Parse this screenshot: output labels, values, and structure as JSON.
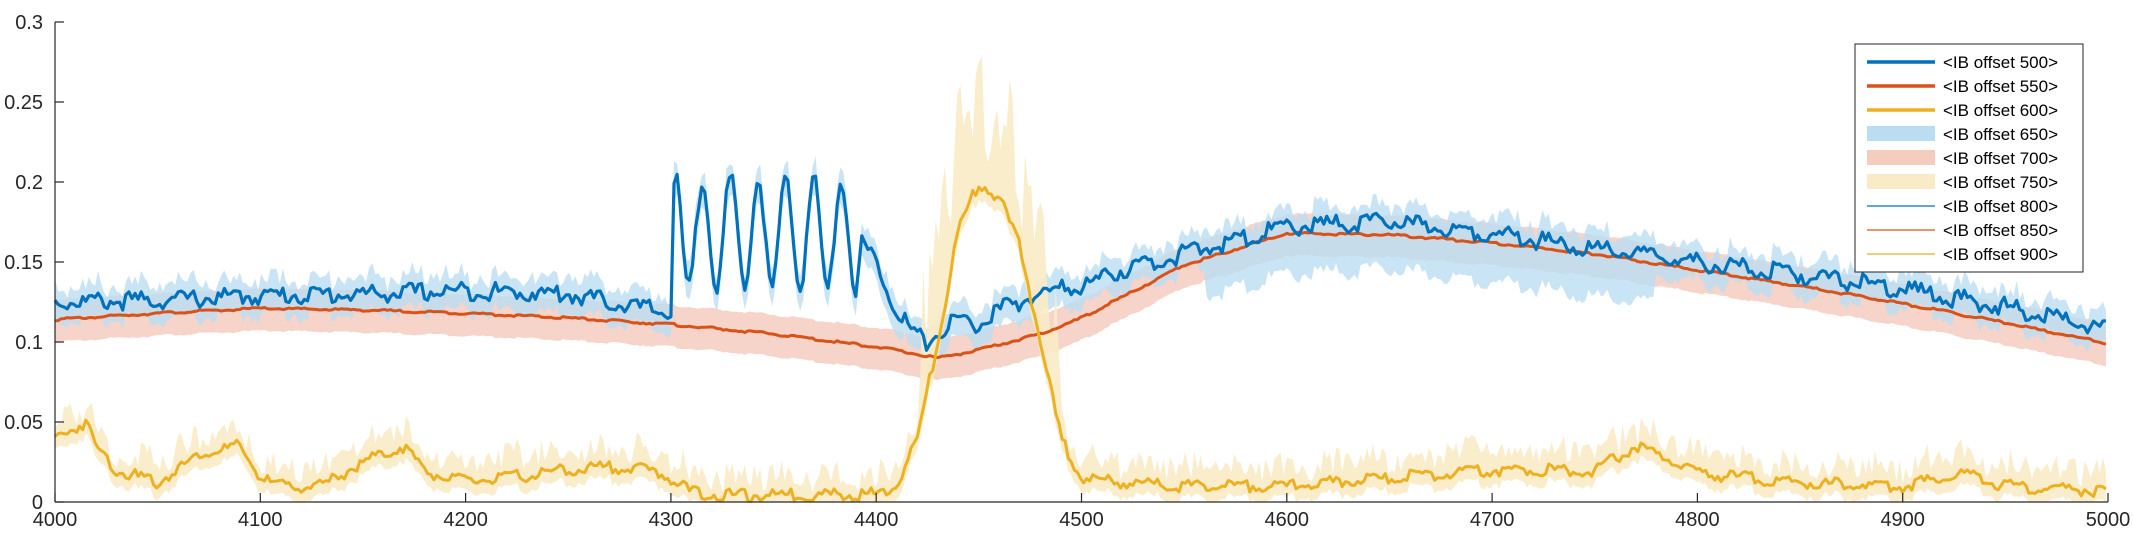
{
  "chart_data": {
    "type": "line",
    "title": "",
    "xlabel": "",
    "ylabel": "",
    "xlim": [
      4000,
      5000
    ],
    "ylim": [
      0,
      0.3
    ],
    "xticks": [
      4000,
      4100,
      4200,
      4300,
      4400,
      4500,
      4600,
      4700,
      4800,
      4900,
      5000
    ],
    "yticks": [
      0,
      0.05,
      0.1,
      0.15,
      0.2,
      0.25,
      0.3
    ],
    "xtick_labels": [
      "4000",
      "4100",
      "4200",
      "4300",
      "4400",
      "4500",
      "4600",
      "4700",
      "4800",
      "4900",
      "5000"
    ],
    "ytick_labels": [
      "0",
      "0.05",
      "0.1",
      "0.15",
      "0.2",
      "0.25",
      "0.3"
    ],
    "grid": false,
    "legend_position": "top-right",
    "colors": {
      "blue": "#0072BD",
      "orange": "#D95319",
      "yellow": "#EDB120",
      "blue_band": "#BBDDF2",
      "orange_band": "#F5CDBF",
      "yellow_band": "#F9EBC7"
    },
    "series": [
      {
        "name": "<IB offset 500>",
        "style": "line",
        "color": "#0072BD",
        "x": [
          4000,
          4050,
          4100,
          4150,
          4200,
          4250,
          4300,
          4301,
          4305,
          4320,
          4340,
          4360,
          4380,
          4400,
          4405,
          4410,
          4420,
          4425,
          4430,
          4440,
          4450,
          4460,
          4470,
          4480,
          4490,
          4500,
          4520,
          4550,
          4580,
          4600,
          4650,
          4700,
          4750,
          4800,
          4850,
          4900,
          4950,
          5000
        ],
        "y": [
          0.125,
          0.126,
          0.129,
          0.13,
          0.132,
          0.13,
          0.118,
          0.195,
          0.185,
          0.185,
          0.185,
          0.185,
          0.185,
          0.15,
          0.135,
          0.12,
          0.103,
          0.1,
          0.105,
          0.115,
          0.11,
          0.12,
          0.125,
          0.13,
          0.133,
          0.135,
          0.145,
          0.155,
          0.165,
          0.172,
          0.175,
          0.168,
          0.158,
          0.15,
          0.142,
          0.133,
          0.122,
          0.108
        ]
      },
      {
        "name": "<IB offset 550>",
        "style": "line",
        "color": "#D95319",
        "x": [
          4000,
          4050,
          4100,
          4150,
          4200,
          4250,
          4300,
          4350,
          4400,
          4430,
          4450,
          4480,
          4500,
          4550,
          4600,
          4650,
          4700,
          4750,
          4800,
          4850,
          4900,
          4950,
          5000
        ],
        "y": [
          0.114,
          0.118,
          0.121,
          0.12,
          0.118,
          0.115,
          0.111,
          0.105,
          0.097,
          0.09,
          0.095,
          0.105,
          0.115,
          0.148,
          0.168,
          0.167,
          0.162,
          0.155,
          0.145,
          0.135,
          0.124,
          0.112,
          0.099
        ]
      },
      {
        "name": "<IB offset 600>",
        "style": "line",
        "color": "#EDB120",
        "x": [
          4000,
          4015,
          4020,
          4030,
          4050,
          4070,
          4090,
          4100,
          4110,
          4130,
          4150,
          4170,
          4180,
          4190,
          4200,
          4220,
          4250,
          4270,
          4290,
          4300,
          4310,
          4330,
          4400,
          4410,
          4420,
          4430,
          4440,
          4450,
          4460,
          4470,
          4480,
          4490,
          4500,
          4520,
          4550,
          4600,
          4650,
          4700,
          4750,
          4770,
          4790,
          4800,
          4850,
          4900,
          4930,
          4950,
          5000
        ],
        "y": [
          0.04,
          0.05,
          0.035,
          0.02,
          0.012,
          0.03,
          0.035,
          0.015,
          0.01,
          0.01,
          0.025,
          0.035,
          0.02,
          0.015,
          0.013,
          0.015,
          0.02,
          0.022,
          0.02,
          0.015,
          0.006,
          0.004,
          0.005,
          0.01,
          0.04,
          0.1,
          0.17,
          0.2,
          0.19,
          0.16,
          0.1,
          0.04,
          0.015,
          0.012,
          0.01,
          0.01,
          0.015,
          0.02,
          0.02,
          0.035,
          0.025,
          0.018,
          0.012,
          0.01,
          0.018,
          0.01,
          0.007
        ]
      },
      {
        "name": "<IB offset 650>",
        "style": "band",
        "color": "#BBDDF2"
      },
      {
        "name": "<IB offset 700>",
        "style": "band",
        "color": "#F5CDBF"
      },
      {
        "name": "<IB offset 750>",
        "style": "band",
        "color": "#F9EBC7"
      },
      {
        "name": "<IB offset 800>",
        "style": "thin",
        "color": "#0072BD"
      },
      {
        "name": "<IB offset 850>",
        "style": "thin",
        "color": "#D95319"
      },
      {
        "name": "<IB offset 900>",
        "style": "thin",
        "color": "#EDB120"
      }
    ]
  }
}
